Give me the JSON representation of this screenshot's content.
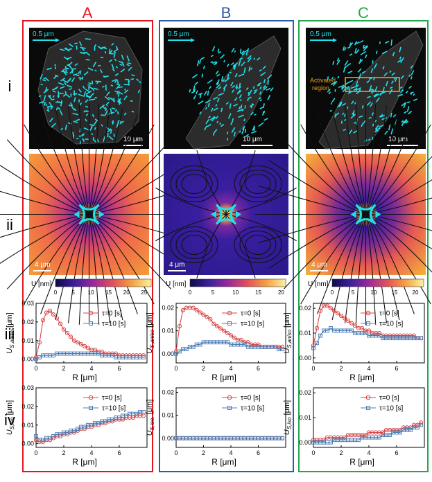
{
  "figure": {
    "panel_labels": [
      {
        "text": "A",
        "color": "#e8141b"
      },
      {
        "text": "B",
        "color": "#2f5ba8"
      },
      {
        "text": "C",
        "color": "#22a84a"
      }
    ],
    "row_labels": [
      "i",
      "ii",
      "iii",
      "iv"
    ],
    "scale_top": "0.5 μm",
    "scale_bottom_i": "10 μm",
    "scale_bottom_ii": "4 μm",
    "activated_region": "Activated\nregion",
    "colorbar_label": "U [nm]",
    "colorbars": [
      {
        "ticks": [
          "0",
          "5",
          "10",
          "15",
          "20",
          "25"
        ],
        "max": 27
      },
      {
        "ticks": [
          "0",
          "5",
          "10",
          "15",
          "20"
        ],
        "max": 21
      },
      {
        "ticks": [
          "0",
          "5",
          "10",
          "15",
          "20"
        ],
        "max": 22
      }
    ],
    "colors": {
      "series0": "#d94545",
      "series1": "#4a7cb5",
      "arrow": "#20e0ea",
      "region": "#e8a21c"
    }
  },
  "chart_data": [
    {
      "type": "line",
      "panel": "A",
      "row": "iii",
      "xlabel": "R [μm]",
      "ylabel": "U_{S,aniso} [μm]",
      "xlim": [
        0,
        8
      ],
      "ylim": [
        -0.002,
        0.03
      ],
      "xticks": [
        "0",
        "2",
        "4",
        "6"
      ],
      "yticks": [
        "0.00",
        "0.01",
        "0.02",
        "0.03"
      ],
      "legend": [
        "τ=0 [s]",
        "τ=10 [s]"
      ],
      "x": [
        0,
        0.25,
        0.5,
        0.75,
        1,
        1.25,
        1.5,
        1.75,
        2,
        2.25,
        2.5,
        2.75,
        3,
        3.25,
        3.5,
        3.75,
        4,
        4.25,
        4.5,
        4.75,
        5,
        5.25,
        5.5,
        5.75,
        6,
        6.25,
        6.5,
        6.75,
        7,
        7.25,
        7.5,
        7.75
      ],
      "series": [
        {
          "name": "τ=0 [s]",
          "values": [
            0.001,
            0.009,
            0.021,
            0.025,
            0.026,
            0.024,
            0.022,
            0.019,
            0.016,
            0.014,
            0.012,
            0.01,
            0.009,
            0.008,
            0.007,
            0.006,
            0.005,
            0.005,
            0.004,
            0.004,
            0.003,
            0.003,
            0.003,
            0.003,
            0.002,
            0.002,
            0.002,
            0.002,
            0.002,
            0.002,
            0.002,
            0.002
          ]
        },
        {
          "name": "τ=10 [s]",
          "values": [
            0.0,
            0.001,
            0.002,
            0.002,
            0.002,
            0.002,
            0.003,
            0.003,
            0.003,
            0.003,
            0.003,
            0.003,
            0.003,
            0.003,
            0.003,
            0.003,
            0.003,
            0.003,
            0.003,
            0.002,
            0.002,
            0.002,
            0.002,
            0.001,
            0.001,
            0.001,
            0.001,
            0.001,
            0.001,
            0.001,
            0.001,
            0.001
          ]
        }
      ]
    },
    {
      "type": "line",
      "panel": "A",
      "row": "iv",
      "xlabel": "R [μm]",
      "ylabel": "U_{S,iso} [μm]",
      "xlim": [
        0,
        8
      ],
      "ylim": [
        -0.002,
        0.03
      ],
      "xticks": [
        "0",
        "2",
        "4",
        "6"
      ],
      "yticks": [
        "0.00",
        "0.01",
        "0.02",
        "0.03"
      ],
      "legend": [
        "τ=0 [s]",
        "τ=10 [s]"
      ],
      "x": [
        0,
        0.25,
        0.5,
        0.75,
        1,
        1.25,
        1.5,
        1.75,
        2,
        2.25,
        2.5,
        2.75,
        3,
        3.25,
        3.5,
        3.75,
        4,
        4.25,
        4.5,
        4.75,
        5,
        5.25,
        5.5,
        5.75,
        6,
        6.25,
        6.5,
        6.75,
        7,
        7.25,
        7.5,
        7.75
      ],
      "series": [
        {
          "name": "τ=0 [s]",
          "values": [
            0.002,
            0.001,
            0.001,
            0.002,
            0.002,
            0.003,
            0.004,
            0.004,
            0.005,
            0.005,
            0.006,
            0.006,
            0.007,
            0.008,
            0.008,
            0.009,
            0.009,
            0.01,
            0.01,
            0.011,
            0.011,
            0.012,
            0.012,
            0.013,
            0.013,
            0.013,
            0.014,
            0.014,
            0.014,
            0.015,
            0.015,
            0.015
          ]
        },
        {
          "name": "τ=10 [s]",
          "values": [
            0.004,
            0.002,
            0.002,
            0.003,
            0.003,
            0.004,
            0.005,
            0.005,
            0.006,
            0.006,
            0.007,
            0.007,
            0.008,
            0.009,
            0.009,
            0.01,
            0.01,
            0.011,
            0.011,
            0.012,
            0.012,
            0.013,
            0.013,
            0.014,
            0.014,
            0.015,
            0.015,
            0.016,
            0.016,
            0.016,
            0.017,
            0.017
          ]
        }
      ]
    },
    {
      "type": "line",
      "panel": "B",
      "row": "iii",
      "xlabel": "R [μm]",
      "ylabel": "U_{S,aniso} [μm]",
      "xlim": [
        0,
        8
      ],
      "ylim": [
        -0.004,
        0.022
      ],
      "xticks": [
        "0",
        "2",
        "4",
        "6"
      ],
      "yticks": [
        "0.00",
        "0.01",
        "0.02"
      ],
      "legend": [
        "τ=0 [s]",
        "τ=10 [s]"
      ],
      "x": [
        0,
        0.25,
        0.5,
        0.75,
        1,
        1.25,
        1.5,
        1.75,
        2,
        2.25,
        2.5,
        2.75,
        3,
        3.25,
        3.5,
        3.75,
        4,
        4.25,
        4.5,
        4.75,
        5,
        5.25,
        5.5,
        5.75,
        6,
        6.25,
        6.5,
        6.75,
        7,
        7.25,
        7.5,
        7.75
      ],
      "series": [
        {
          "name": "τ=0 [s]",
          "values": [
            0.001,
            0.012,
            0.019,
            0.02,
            0.02,
            0.02,
            0.019,
            0.018,
            0.017,
            0.016,
            0.015,
            0.013,
            0.012,
            0.011,
            0.01,
            0.009,
            0.008,
            0.007,
            0.006,
            0.006,
            0.005,
            0.005,
            0.004,
            0.004,
            0.004,
            0.003,
            0.003,
            0.003,
            0.003,
            0.003,
            0.003,
            0.003
          ]
        },
        {
          "name": "τ=10 [s]",
          "values": [
            0.0,
            0.001,
            0.002,
            0.002,
            0.003,
            0.003,
            0.004,
            0.004,
            0.005,
            0.005,
            0.005,
            0.005,
            0.005,
            0.005,
            0.005,
            0.005,
            0.004,
            0.004,
            0.004,
            0.004,
            0.004,
            0.003,
            0.003,
            0.003,
            0.003,
            0.003,
            0.003,
            0.003,
            0.003,
            0.003,
            0.002,
            0.002
          ]
        }
      ]
    },
    {
      "type": "line",
      "panel": "B",
      "row": "iv",
      "xlabel": "R [μm]",
      "ylabel": "U_{S,iso.} [μm]",
      "xlim": [
        0,
        8
      ],
      "ylim": [
        -0.004,
        0.022
      ],
      "xticks": [
        "0",
        "2",
        "4",
        "6"
      ],
      "yticks": [
        "0.00",
        "0.01",
        "0.02"
      ],
      "legend": [
        "τ=0 [s]",
        "τ=10 [s]"
      ],
      "x": [
        0,
        0.25,
        0.5,
        0.75,
        1,
        1.25,
        1.5,
        1.75,
        2,
        2.25,
        2.5,
        2.75,
        3,
        3.25,
        3.5,
        3.75,
        4,
        4.25,
        4.5,
        4.75,
        5,
        5.25,
        5.5,
        5.75,
        6,
        6.25,
        6.5,
        6.75,
        7,
        7.25,
        7.5,
        7.75
      ],
      "series": [
        {
          "name": "τ=0 [s]",
          "values": [
            0,
            0,
            0,
            0,
            0,
            0,
            0,
            0,
            0,
            0,
            0,
            0,
            0,
            0,
            0,
            0,
            0,
            0,
            0,
            0,
            0,
            0,
            0,
            0,
            0,
            0,
            0,
            0,
            0,
            0,
            0,
            0
          ]
        },
        {
          "name": "τ=10 [s]",
          "values": [
            0,
            0,
            0,
            0,
            0,
            0,
            0,
            0,
            0,
            0,
            0,
            0,
            0,
            0,
            0,
            0,
            0,
            0,
            0,
            0,
            0,
            0,
            0,
            0,
            0,
            0,
            0,
            0,
            0,
            0,
            0,
            0
          ]
        }
      ]
    },
    {
      "type": "line",
      "panel": "C",
      "row": "iii",
      "xlabel": "R [μm]",
      "ylabel": "U_{S,aniso} [μm]",
      "xlim": [
        0,
        8
      ],
      "ylim": [
        -0.002,
        0.022
      ],
      "xticks": [
        "0",
        "2",
        "4",
        "6"
      ],
      "yticks": [
        "0.00",
        "0.01",
        "0.02"
      ],
      "legend": [
        "τ=0 [s]",
        "τ=10 [s]"
      ],
      "x": [
        0,
        0.25,
        0.5,
        0.75,
        1,
        1.25,
        1.5,
        1.75,
        2,
        2.25,
        2.5,
        2.75,
        3,
        3.25,
        3.5,
        3.75,
        4,
        4.25,
        4.5,
        4.75,
        5,
        5.25,
        5.5,
        5.75,
        6,
        6.25,
        6.5,
        6.75,
        7,
        7.25,
        7.5,
        7.75
      ],
      "series": [
        {
          "name": "τ=0 [s]",
          "values": [
            0.005,
            0.012,
            0.019,
            0.021,
            0.021,
            0.02,
            0.019,
            0.018,
            0.017,
            0.016,
            0.015,
            0.014,
            0.013,
            0.012,
            0.012,
            0.011,
            0.011,
            0.01,
            0.01,
            0.01,
            0.009,
            0.009,
            0.009,
            0.009,
            0.009,
            0.009,
            0.009,
            0.009,
            0.009,
            0.009,
            0.008,
            0.008
          ]
        },
        {
          "name": "τ=10 [s]",
          "values": [
            0.004,
            0.006,
            0.009,
            0.011,
            0.011,
            0.012,
            0.011,
            0.011,
            0.011,
            0.011,
            0.011,
            0.011,
            0.01,
            0.01,
            0.01,
            0.01,
            0.009,
            0.009,
            0.009,
            0.009,
            0.008,
            0.008,
            0.008,
            0.008,
            0.008,
            0.008,
            0.008,
            0.008,
            0.008,
            0.008,
            0.008,
            0.008
          ]
        }
      ]
    },
    {
      "type": "line",
      "panel": "C",
      "row": "iv",
      "xlabel": "R [μm]",
      "ylabel": "U_{S,iso} [μm]",
      "xlim": [
        0,
        8
      ],
      "ylim": [
        -0.002,
        0.022
      ],
      "xticks": [
        "0",
        "2",
        "4",
        "6"
      ],
      "yticks": [
        "0.00",
        "0.01",
        "0.02"
      ],
      "legend": [
        "τ=0 [s]",
        "τ=10 [s]"
      ],
      "x": [
        0,
        0.25,
        0.5,
        0.75,
        1,
        1.25,
        1.5,
        1.75,
        2,
        2.25,
        2.5,
        2.75,
        3,
        3.25,
        3.5,
        3.75,
        4,
        4.25,
        4.5,
        4.75,
        5,
        5.25,
        5.5,
        5.75,
        6,
        6.25,
        6.5,
        6.75,
        7,
        7.25,
        7.5,
        7.75
      ],
      "series": [
        {
          "name": "τ=0 [s]",
          "values": [
            0.001,
            0.001,
            0.001,
            0.001,
            0.002,
            0.002,
            0.002,
            0.002,
            0.002,
            0.002,
            0.003,
            0.003,
            0.003,
            0.003,
            0.003,
            0.003,
            0.004,
            0.004,
            0.004,
            0.004,
            0.004,
            0.005,
            0.005,
            0.005,
            0.005,
            0.005,
            0.006,
            0.006,
            0.006,
            0.007,
            0.007,
            0.008
          ]
        },
        {
          "name": "τ=10 [s]",
          "values": [
            0.0,
            0.0,
            0.0,
            0.0,
            0.0,
            0.0,
            0.001,
            0.001,
            0.001,
            0.001,
            0.001,
            0.001,
            0.001,
            0.001,
            0.002,
            0.002,
            0.002,
            0.002,
            0.002,
            0.002,
            0.003,
            0.003,
            0.003,
            0.004,
            0.004,
            0.004,
            0.005,
            0.005,
            0.005,
            0.006,
            0.006,
            0.007
          ]
        }
      ]
    }
  ]
}
